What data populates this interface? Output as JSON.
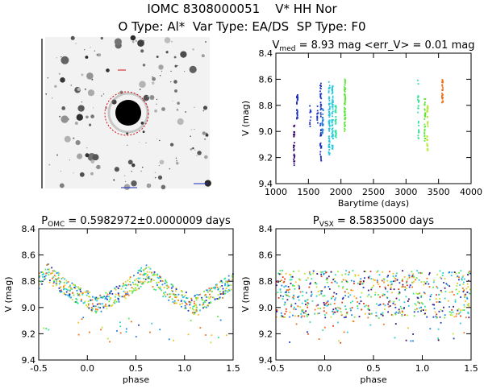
{
  "header": {
    "line1": "IOMC 8308000051    V* HH Nor",
    "line2": "O Type: Al*  Var Type: EA/DS  SP Type: F0"
  },
  "colors": {
    "palette": [
      "#3a0a6e",
      "#1a2fbf",
      "#1f7fe0",
      "#22c8e0",
      "#2ae09a",
      "#5ee83a",
      "#b7e830",
      "#f2c020",
      "#f07018",
      "#e03a10"
    ]
  },
  "chart_data": [
    {
      "id": "lightcurve",
      "type": "scatter",
      "title_main": "V",
      "title_sub": "med",
      "title_rest": " = 8.93 mag <err_V> = 0.01 mag",
      "xlabel": "Barytime (days)",
      "ylabel": "V (mag)",
      "xlim": [
        1000,
        4000
      ],
      "ylim": [
        9.4,
        8.4
      ],
      "xticks": [
        "1000",
        "1500",
        "2000",
        "2500",
        "3000",
        "3500",
        "4000"
      ],
      "yticks": [
        "8.4",
        "8.6",
        "8.8",
        "9.0",
        "9.2",
        "9.4"
      ],
      "clusters": [
        {
          "x": 1280,
          "y0": 8.95,
          "y1": 9.28,
          "n": 30,
          "c": 0
        },
        {
          "x": 1330,
          "y0": 8.72,
          "y1": 8.92,
          "n": 25,
          "c": 1
        },
        {
          "x": 1530,
          "y0": 8.8,
          "y1": 8.98,
          "n": 10,
          "c": 1
        },
        {
          "x": 1640,
          "y0": 8.8,
          "y1": 8.95,
          "n": 12,
          "c": 1
        },
        {
          "x": 1690,
          "y0": 8.62,
          "y1": 9.25,
          "n": 50,
          "c": 1
        },
        {
          "x": 1720,
          "y0": 8.82,
          "y1": 9.02,
          "n": 25,
          "c": 2
        },
        {
          "x": 1820,
          "y0": 8.62,
          "y1": 9.2,
          "n": 70,
          "c": 3
        },
        {
          "x": 1870,
          "y0": 8.65,
          "y1": 9.15,
          "n": 60,
          "c": 3
        },
        {
          "x": 1920,
          "y0": 8.8,
          "y1": 9.05,
          "n": 30,
          "c": 4
        },
        {
          "x": 2060,
          "y0": 8.6,
          "y1": 9.0,
          "n": 60,
          "c": 5
        },
        {
          "x": 3190,
          "y0": 8.6,
          "y1": 9.1,
          "n": 25,
          "c": 4
        },
        {
          "x": 3290,
          "y0": 8.75,
          "y1": 9.1,
          "n": 30,
          "c": 5
        },
        {
          "x": 3330,
          "y0": 8.8,
          "y1": 9.15,
          "n": 30,
          "c": 6
        },
        {
          "x": 3560,
          "y0": 8.6,
          "y1": 8.78,
          "n": 30,
          "c": 8
        }
      ]
    },
    {
      "id": "phase_omc",
      "type": "scatter",
      "title_main": "P",
      "title_sub": "OMC",
      "title_rest": " = 0.5982972±0.0000009 days",
      "xlabel": "phase",
      "ylabel": "V (mag)",
      "xlim": [
        -0.5,
        1.5
      ],
      "ylim": [
        9.4,
        8.4
      ],
      "xticks": [
        "-0.5",
        "0.0",
        "0.5",
        "1.0",
        "1.5"
      ],
      "yticks": [
        "8.4",
        "8.6",
        "8.8",
        "9.0",
        "9.2",
        "9.4"
      ],
      "model": {
        "max_mag": 8.72,
        "min_mag": 8.98,
        "maxima_phase": [
          -0.4,
          0.6
        ]
      }
    },
    {
      "id": "phase_vsx",
      "type": "scatter",
      "title_main": "P",
      "title_sub": "VSX",
      "title_rest": " = 8.5835000 days",
      "xlabel": "phase",
      "ylabel": "V (mag)",
      "xlim": [
        -0.5,
        1.5
      ],
      "ylim": [
        9.4,
        8.4
      ],
      "xticks": [
        "-0.5",
        "0.0",
        "0.5",
        "1.0",
        "1.5"
      ],
      "yticks": [
        "8.4",
        "8.6",
        "8.8",
        "9.0",
        "9.2",
        "9.4"
      ],
      "model": {
        "mean_mag": 8.9,
        "spread": 0.28
      }
    }
  ]
}
